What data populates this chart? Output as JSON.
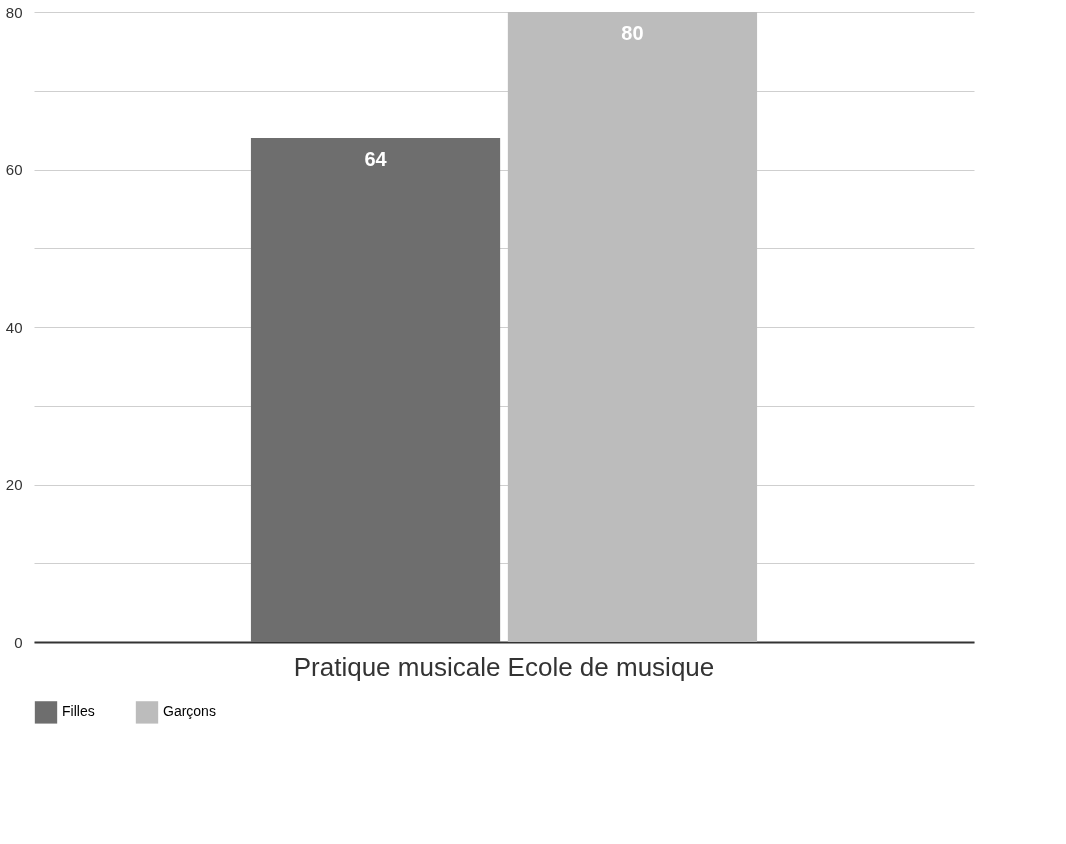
{
  "chart_data": {
    "type": "bar",
    "categories": [
      "Pratique musicale Ecole de musique"
    ],
    "series": [
      {
        "name": "Filles",
        "color": "#6e6e6e",
        "values": [
          64
        ]
      },
      {
        "name": "Garçons",
        "color": "#bcbcbc",
        "values": [
          80
        ]
      }
    ],
    "ylim": [
      0,
      80
    ],
    "yticks": [
      0,
      {
        "value": 10,
        "label": null
      },
      20,
      {
        "value": 30,
        "label": null
      },
      40,
      {
        "value": 50,
        "label": null
      },
      60,
      {
        "value": 70,
        "label": null
      },
      80
    ],
    "grid": "y",
    "legend": "bottom",
    "data_labels": true
  }
}
